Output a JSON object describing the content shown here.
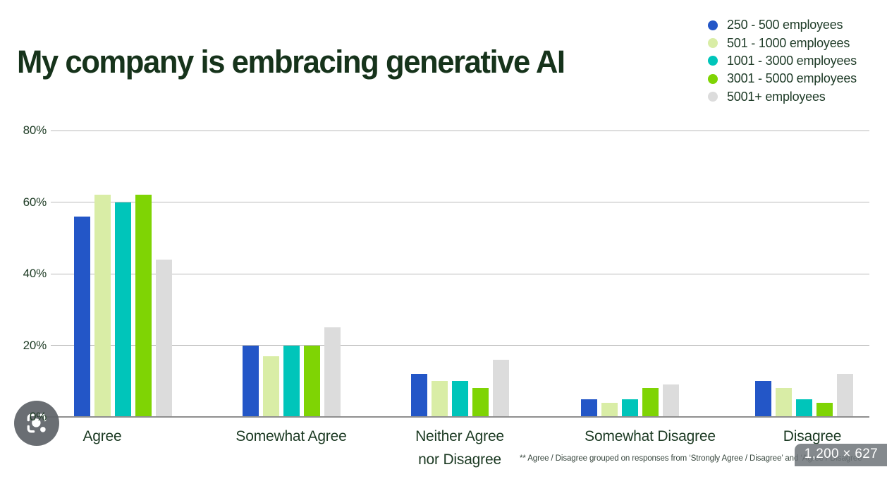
{
  "header": {
    "title": "My company is embracing generative AI"
  },
  "legend": {
    "items": [
      {
        "label": "250 - 500 employees",
        "color": "#2356c7"
      },
      {
        "label": "501 - 1000 employees",
        "color": "#d9eda6"
      },
      {
        "label": "1001 - 3000 employees",
        "color": "#00c5ba"
      },
      {
        "label": "3001 - 5000 employees",
        "color": "#7fd404"
      },
      {
        "label": "5001+ employees",
        "color": "#dcdcdc"
      }
    ]
  },
  "chart_data": {
    "type": "bar",
    "title": "My company is embracing generative AI",
    "categories": [
      "Agree",
      "Somewhat Agree",
      "Neither Agree\nnor Disagree",
      "Somewhat Disagree",
      "Disagree"
    ],
    "series": [
      {
        "name": "250 - 500 employees",
        "color": "#2356c7",
        "values": [
          56,
          20,
          12,
          5,
          10
        ]
      },
      {
        "name": "501 - 1000 employees",
        "color": "#d9eda6",
        "values": [
          62,
          17,
          10,
          4,
          8
        ]
      },
      {
        "name": "1001 - 3000 employees",
        "color": "#00c5ba",
        "values": [
          60,
          20,
          10,
          5,
          5
        ]
      },
      {
        "name": "3001 - 5000 employees",
        "color": "#7fd404",
        "values": [
          62,
          20,
          8,
          8,
          4
        ]
      },
      {
        "name": "5001+ employees",
        "color": "#dcdcdc",
        "values": [
          44,
          25,
          16,
          9,
          12
        ]
      }
    ],
    "xlabel": "",
    "ylabel": "",
    "y_ticks": [
      "0%",
      "20%",
      "40%",
      "60%",
      "80%"
    ],
    "ylim": [
      0,
      80
    ],
    "grid": true,
    "legend_position": "top-right"
  },
  "footnote": "** Agree / Disagree grouped on responses from ‘Strongly Agree / Disagree’ and ‘Agree / Disagree’",
  "overlays": {
    "dimensions_badge": "1,200 × 627",
    "lens_button_label": "Search with Google Lens"
  }
}
